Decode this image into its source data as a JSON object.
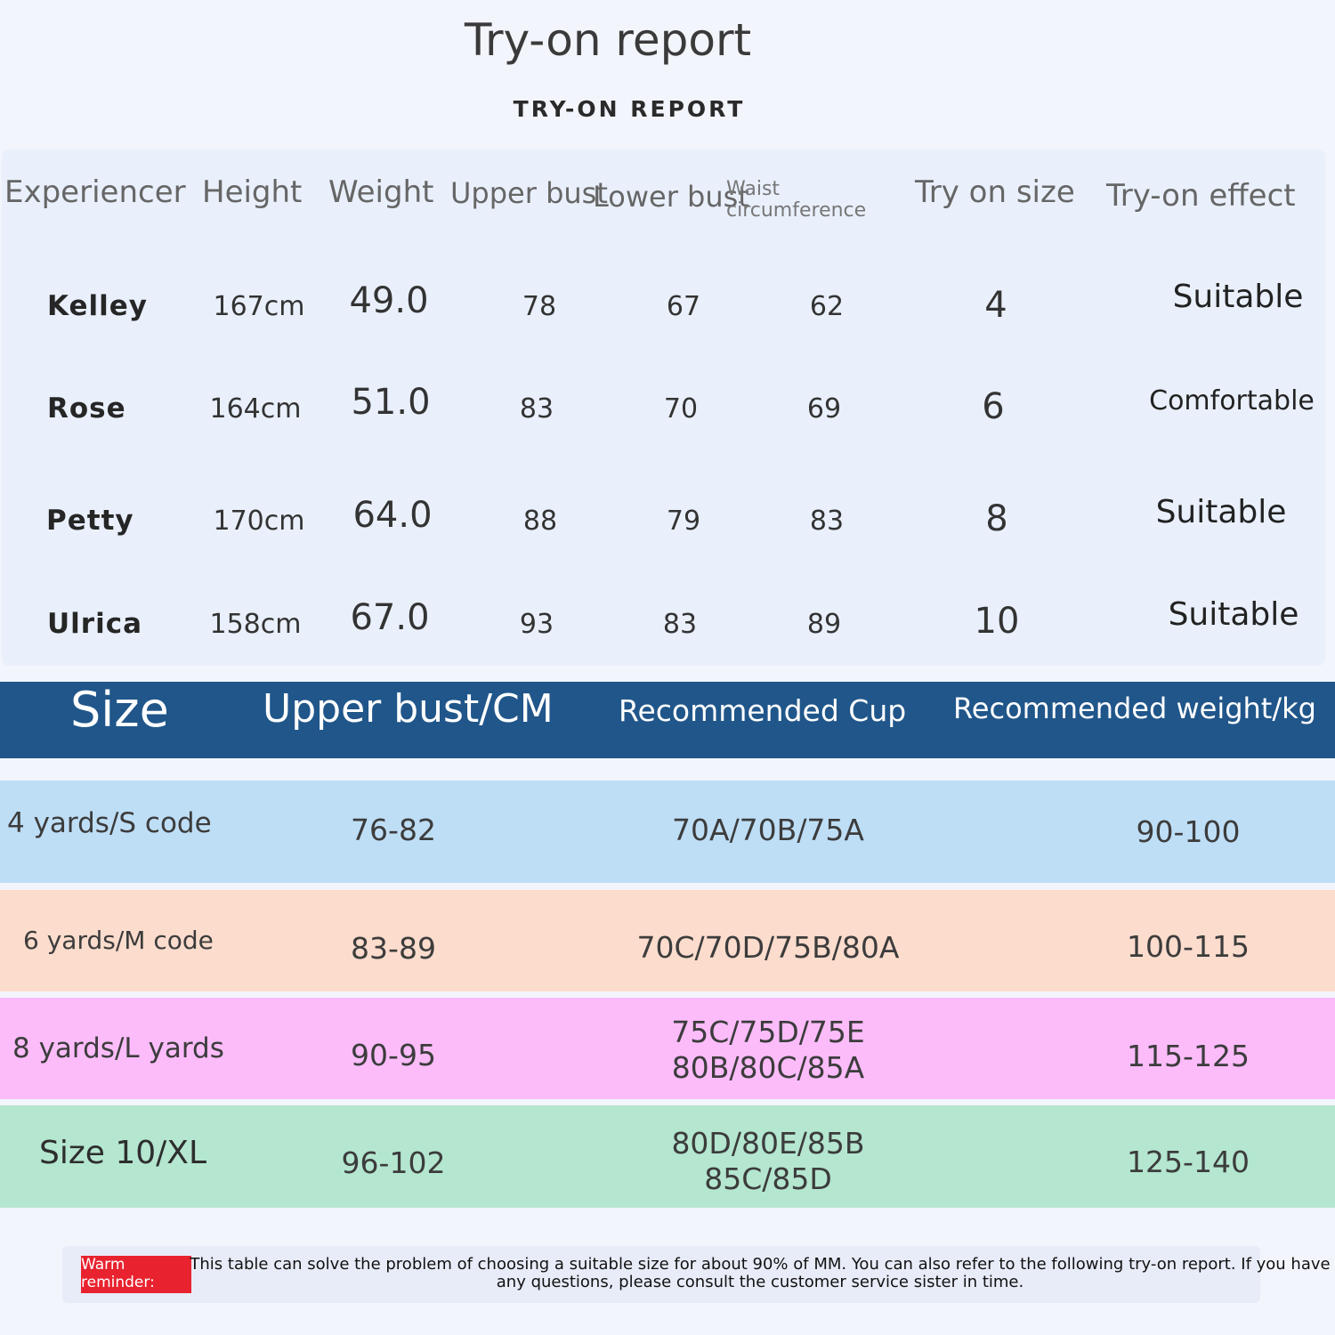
{
  "title": "Try-on report",
  "subtitle": "TRY-ON REPORT",
  "report": {
    "headers": {
      "experiencer": "Experiencer",
      "height": "Height",
      "weight": "Weight",
      "upper_bust": "Upper bust",
      "lower_bust": "Lower bust",
      "waist": "Waist circumference",
      "try_on_size": "Try on size",
      "try_on_effect": "Try-on effect"
    },
    "rows": [
      {
        "name": "Kelley",
        "height": "167cm",
        "weight": "49.0",
        "upper_bust": "78",
        "lower_bust": "67",
        "waist": "62",
        "size": "4",
        "effect": "Suitable"
      },
      {
        "name": "Rose",
        "height": "164cm",
        "weight": "51.0",
        "upper_bust": "83",
        "lower_bust": "70",
        "waist": "69",
        "size": "6",
        "effect": "Comfortable"
      },
      {
        "name": "Petty",
        "height": "170cm",
        "weight": "64.0",
        "upper_bust": "88",
        "lower_bust": "79",
        "waist": "83",
        "size": "8",
        "effect": "Suitable"
      },
      {
        "name": "Ulrica",
        "height": "158cm",
        "weight": "67.0",
        "upper_bust": "93",
        "lower_bust": "83",
        "waist": "89",
        "size": "10",
        "effect": "Suitable"
      }
    ]
  },
  "size_chart": {
    "headers": {
      "size": "Size",
      "upper_bust": "Upper bust/CM",
      "cup": "Recommended Cup",
      "weight": "Recommended weight/kg"
    },
    "header_color": "#20568a",
    "rows": [
      {
        "size": "4 yards/S code",
        "upper_bust": "76-82",
        "cup": [
          "70A/70B/75A"
        ],
        "weight": "90-100",
        "color": "#bedef6"
      },
      {
        "size": "6 yards/M code",
        "upper_bust": "83-89",
        "cup": [
          "70C/70D/75B/80A"
        ],
        "weight": "100-115",
        "color": "#fcdccd"
      },
      {
        "size": "8 yards/L yards",
        "upper_bust": "90-95",
        "cup": [
          "75C/75D/75E",
          "80B/80C/85A"
        ],
        "weight": "115-125",
        "color": "#fcbcfa"
      },
      {
        "size": "Size 10/XL",
        "upper_bust": "96-102",
        "cup": [
          "80D/80E/85B",
          "85C/85D"
        ],
        "weight": "125-140",
        "color": "#b4e6d0"
      }
    ]
  },
  "reminder": {
    "label": "Warm reminder:",
    "text": "This table can solve the problem of choosing a suitable size for about 90% of MM. You can also refer to the following try-on report. If you have any questions, please consult the customer service sister in time.",
    "label_color": "#e8222f"
  }
}
